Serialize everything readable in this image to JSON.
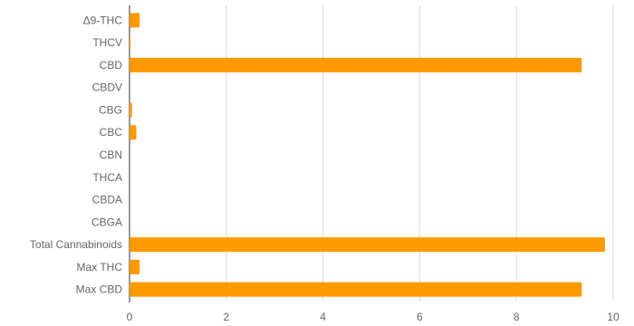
{
  "chart_data": {
    "type": "bar",
    "orientation": "horizontal",
    "categories": [
      "Δ9-THC",
      "THCV",
      "CBD",
      "CBDV",
      "CBG",
      "CBC",
      "CBN",
      "THCA",
      "CBDA",
      "CBGA",
      "Total Cannabinoids",
      "Max THC",
      "Max CBD"
    ],
    "values": [
      0.21,
      0.02,
      9.35,
      0.0,
      0.05,
      0.14,
      0.0,
      0.0,
      0.0,
      0.0,
      9.83,
      0.21,
      9.35
    ],
    "xlim": [
      0,
      10
    ],
    "x_ticks": [
      "0",
      "2",
      "4",
      "6",
      "8",
      "10"
    ],
    "title": "",
    "xlabel": "",
    "ylabel": "",
    "grid": "vertical",
    "legend": "none",
    "bar_color": "#ff9900"
  }
}
